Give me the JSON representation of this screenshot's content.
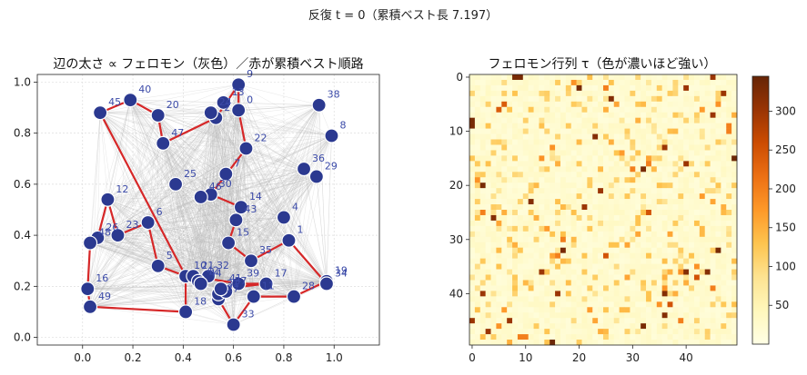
{
  "figure": {
    "suptitle": "反復 t = 0（累積ベスト長 7.197）"
  },
  "chart_data": [
    {
      "type": "scatter",
      "title": "辺の太さ ∝ フェロモン（灰色）／赤が累積ベスト順路",
      "xlabel": "",
      "ylabel": "",
      "xlim": [
        -0.18,
        1.18
      ],
      "ylim": [
        -0.03,
        1.03
      ],
      "xticks": [
        "0.0",
        "0.2",
        "0.4",
        "0.6",
        "0.8",
        "1.0"
      ],
      "yticks": [
        "0.0",
        "0.2",
        "0.4",
        "0.6",
        "0.8",
        "1.0"
      ],
      "grid": true,
      "nodes": [
        {
          "id": "0",
          "x": 0.62,
          "y": 0.89
        },
        {
          "id": "1",
          "x": 0.82,
          "y": 0.38
        },
        {
          "id": "2",
          "x": 0.53,
          "y": 0.86
        },
        {
          "id": "4",
          "x": 0.8,
          "y": 0.47
        },
        {
          "id": "5",
          "x": 0.3,
          "y": 0.28
        },
        {
          "id": "6",
          "x": 0.26,
          "y": 0.45
        },
        {
          "id": "7",
          "x": 0.57,
          "y": 0.64
        },
        {
          "id": "8",
          "x": 0.99,
          "y": 0.79
        },
        {
          "id": "9",
          "x": 0.62,
          "y": 0.99
        },
        {
          "id": "10",
          "x": 0.41,
          "y": 0.24
        },
        {
          "id": "11",
          "x": 0.68,
          "y": 0.16
        },
        {
          "id": "12",
          "x": 0.1,
          "y": 0.54
        },
        {
          "id": "13",
          "x": 0.56,
          "y": 0.92
        },
        {
          "id": "14",
          "x": 0.63,
          "y": 0.51
        },
        {
          "id": "15",
          "x": 0.58,
          "y": 0.37
        },
        {
          "id": "16",
          "x": 0.02,
          "y": 0.19
        },
        {
          "id": "17",
          "x": 0.73,
          "y": 0.21
        },
        {
          "id": "18",
          "x": 0.41,
          "y": 0.1
        },
        {
          "id": "19",
          "x": 0.97,
          "y": 0.22
        },
        {
          "id": "20",
          "x": 0.3,
          "y": 0.87
        },
        {
          "id": "21",
          "x": 0.44,
          "y": 0.24
        },
        {
          "id": "22",
          "x": 0.65,
          "y": 0.74
        },
        {
          "id": "23",
          "x": 0.14,
          "y": 0.4
        },
        {
          "id": "24",
          "x": 0.51,
          "y": 0.88
        },
        {
          "id": "25",
          "x": 0.37,
          "y": 0.6
        },
        {
          "id": "26",
          "x": 0.06,
          "y": 0.39
        },
        {
          "id": "27",
          "x": 0.54,
          "y": 0.15
        },
        {
          "id": "28",
          "x": 0.84,
          "y": 0.16
        },
        {
          "id": "29",
          "x": 0.93,
          "y": 0.63
        },
        {
          "id": "30",
          "x": 0.51,
          "y": 0.56
        },
        {
          "id": "31",
          "x": 0.54,
          "y": 0.17
        },
        {
          "id": "32",
          "x": 0.5,
          "y": 0.24
        },
        {
          "id": "33",
          "x": 0.6,
          "y": 0.05
        },
        {
          "id": "34",
          "x": 0.97,
          "y": 0.21
        },
        {
          "id": "35",
          "x": 0.67,
          "y": 0.3
        },
        {
          "id": "36",
          "x": 0.88,
          "y": 0.66
        },
        {
          "id": "37",
          "x": 0.57,
          "y": 0.18
        },
        {
          "id": "38",
          "x": 0.94,
          "y": 0.91
        },
        {
          "id": "39",
          "x": 0.62,
          "y": 0.21
        },
        {
          "id": "40",
          "x": 0.19,
          "y": 0.93
        },
        {
          "id": "41",
          "x": 0.55,
          "y": 0.19
        },
        {
          "id": "42",
          "x": 0.46,
          "y": 0.22
        },
        {
          "id": "43",
          "x": 0.61,
          "y": 0.46
        },
        {
          "id": "44",
          "x": 0.47,
          "y": 0.21
        },
        {
          "id": "45",
          "x": 0.07,
          "y": 0.88
        },
        {
          "id": "46",
          "x": 0.47,
          "y": 0.55
        },
        {
          "id": "47",
          "x": 0.32,
          "y": 0.76
        },
        {
          "id": "48",
          "x": 0.03,
          "y": 0.37
        },
        {
          "id": "49",
          "x": 0.03,
          "y": 0.12
        }
      ],
      "best_tour": [
        "45",
        "40",
        "20",
        "47",
        "2",
        "9",
        "0",
        "22",
        "30",
        "14",
        "43",
        "15",
        "35",
        "1",
        "34",
        "19",
        "28",
        "11",
        "33",
        "27",
        "31",
        "37",
        "41",
        "17",
        "39",
        "21",
        "44",
        "32",
        "42",
        "10",
        "5",
        "6",
        "23",
        "12",
        "26",
        "48",
        "16",
        "49",
        "18",
        "10"
      ]
    },
    {
      "type": "heatmap",
      "title": "フェロモン行列 τ（色が濃いほど強い）",
      "size": 50,
      "xticks": [
        "0",
        "10",
        "20",
        "30",
        "40"
      ],
      "yticks": [
        "0",
        "10",
        "20",
        "30",
        "40"
      ],
      "colorbar_ticks": [
        "50",
        "100",
        "150",
        "200",
        "250",
        "300"
      ],
      "vmin": 0,
      "vmax": 345,
      "base_value": 12,
      "strong_cells": [
        {
          "r": 0,
          "c": 9,
          "v": 330
        },
        {
          "r": 0,
          "c": 45,
          "v": 300
        },
        {
          "r": 2,
          "c": 20,
          "v": 160
        },
        {
          "r": 2,
          "c": 25,
          "v": 200
        },
        {
          "r": 2,
          "c": 40,
          "v": 300
        },
        {
          "r": 1,
          "c": 19,
          "v": 180
        },
        {
          "r": 1,
          "c": 26,
          "v": 130
        },
        {
          "r": 3,
          "c": 37,
          "v": 120
        },
        {
          "r": 4,
          "c": 14,
          "v": 110
        },
        {
          "r": 4,
          "c": 25,
          "v": 90
        },
        {
          "r": 5,
          "c": 32,
          "v": 140
        },
        {
          "r": 5,
          "c": 46,
          "v": 180
        },
        {
          "r": 6,
          "c": 5,
          "v": 240
        },
        {
          "r": 6,
          "c": 43,
          "v": 170
        },
        {
          "r": 7,
          "c": 45,
          "v": 300
        },
        {
          "r": 8,
          "c": 0,
          "v": 330
        },
        {
          "r": 8,
          "c": 33,
          "v": 100
        },
        {
          "r": 10,
          "c": 48,
          "v": 200
        },
        {
          "r": 11,
          "c": 23,
          "v": 320
        },
        {
          "r": 11,
          "c": 25,
          "v": 120
        },
        {
          "r": 12,
          "c": 26,
          "v": 150
        },
        {
          "r": 12,
          "c": 30,
          "v": 110
        },
        {
          "r": 13,
          "c": 15,
          "v": 180
        },
        {
          "r": 13,
          "c": 36,
          "v": 300
        },
        {
          "r": 14,
          "c": 28,
          "v": 170
        },
        {
          "r": 15,
          "c": 33,
          "v": 160
        },
        {
          "r": 15,
          "c": 49,
          "v": 340
        },
        {
          "r": 16,
          "c": 1,
          "v": 120
        },
        {
          "r": 16,
          "c": 16,
          "v": 150
        },
        {
          "r": 16,
          "c": 33,
          "v": 200
        },
        {
          "r": 17,
          "c": 34,
          "v": 140
        },
        {
          "r": 18,
          "c": 2,
          "v": 120
        },
        {
          "r": 19,
          "c": 45,
          "v": 100
        },
        {
          "r": 20,
          "c": 1,
          "v": 110
        },
        {
          "r": 20,
          "c": 2,
          "v": 330
        },
        {
          "r": 20,
          "c": 12,
          "v": 140
        },
        {
          "r": 21,
          "c": 24,
          "v": 300
        },
        {
          "r": 22,
          "c": 4,
          "v": 90
        },
        {
          "r": 22,
          "c": 20,
          "v": 120
        },
        {
          "r": 22,
          "c": 43,
          "v": 170
        },
        {
          "r": 23,
          "c": 9,
          "v": 110
        },
        {
          "r": 24,
          "c": 17,
          "v": 140
        },
        {
          "r": 24,
          "c": 47,
          "v": 150
        },
        {
          "r": 25,
          "c": 48,
          "v": 110
        },
        {
          "r": 25,
          "c": 6,
          "v": 150
        },
        {
          "r": 26,
          "c": 4,
          "v": 320
        },
        {
          "r": 26,
          "c": 22,
          "v": 100
        },
        {
          "r": 26,
          "c": 31,
          "v": 130
        },
        {
          "r": 27,
          "c": 5,
          "v": 160
        },
        {
          "r": 27,
          "c": 38,
          "v": 120
        },
        {
          "r": 28,
          "c": 30,
          "v": 90
        },
        {
          "r": 29,
          "c": 31,
          "v": 160
        },
        {
          "r": 29,
          "c": 43,
          "v": 140
        },
        {
          "r": 30,
          "c": 17,
          "v": 200
        },
        {
          "r": 30,
          "c": 19,
          "v": 140
        },
        {
          "r": 31,
          "c": 8,
          "v": 150
        },
        {
          "r": 31,
          "c": 27,
          "v": 130
        },
        {
          "r": 32,
          "c": 17,
          "v": 330
        },
        {
          "r": 33,
          "c": 25,
          "v": 250
        },
        {
          "r": 34,
          "c": 38,
          "v": 110
        },
        {
          "r": 35,
          "c": 42,
          "v": 180
        },
        {
          "r": 36,
          "c": 37,
          "v": 150
        },
        {
          "r": 36,
          "c": 40,
          "v": 320
        },
        {
          "r": 37,
          "c": 29,
          "v": 160
        },
        {
          "r": 38,
          "c": 2,
          "v": 100
        },
        {
          "r": 38,
          "c": 10,
          "v": 140
        },
        {
          "r": 39,
          "c": 22,
          "v": 120
        },
        {
          "r": 39,
          "c": 36,
          "v": 180
        },
        {
          "r": 40,
          "c": 8,
          "v": 110
        },
        {
          "r": 40,
          "c": 16,
          "v": 300
        },
        {
          "r": 40,
          "c": 38,
          "v": 150
        },
        {
          "r": 41,
          "c": 33,
          "v": 130
        },
        {
          "r": 42,
          "c": 37,
          "v": 250
        },
        {
          "r": 42,
          "c": 45,
          "v": 110
        },
        {
          "r": 43,
          "c": 28,
          "v": 140
        },
        {
          "r": 44,
          "c": 36,
          "v": 320
        },
        {
          "r": 45,
          "c": 23,
          "v": 160
        },
        {
          "r": 45,
          "c": 39,
          "v": 200
        },
        {
          "r": 46,
          "c": 32,
          "v": 330
        },
        {
          "r": 46,
          "c": 12,
          "v": 120
        },
        {
          "r": 47,
          "c": 3,
          "v": 300
        },
        {
          "r": 47,
          "c": 25,
          "v": 140
        },
        {
          "r": 48,
          "c": 9,
          "v": 200
        },
        {
          "r": 48,
          "c": 44,
          "v": 110
        },
        {
          "r": 49,
          "c": 7,
          "v": 150
        },
        {
          "r": 49,
          "c": 20,
          "v": 120
        }
      ]
    }
  ]
}
